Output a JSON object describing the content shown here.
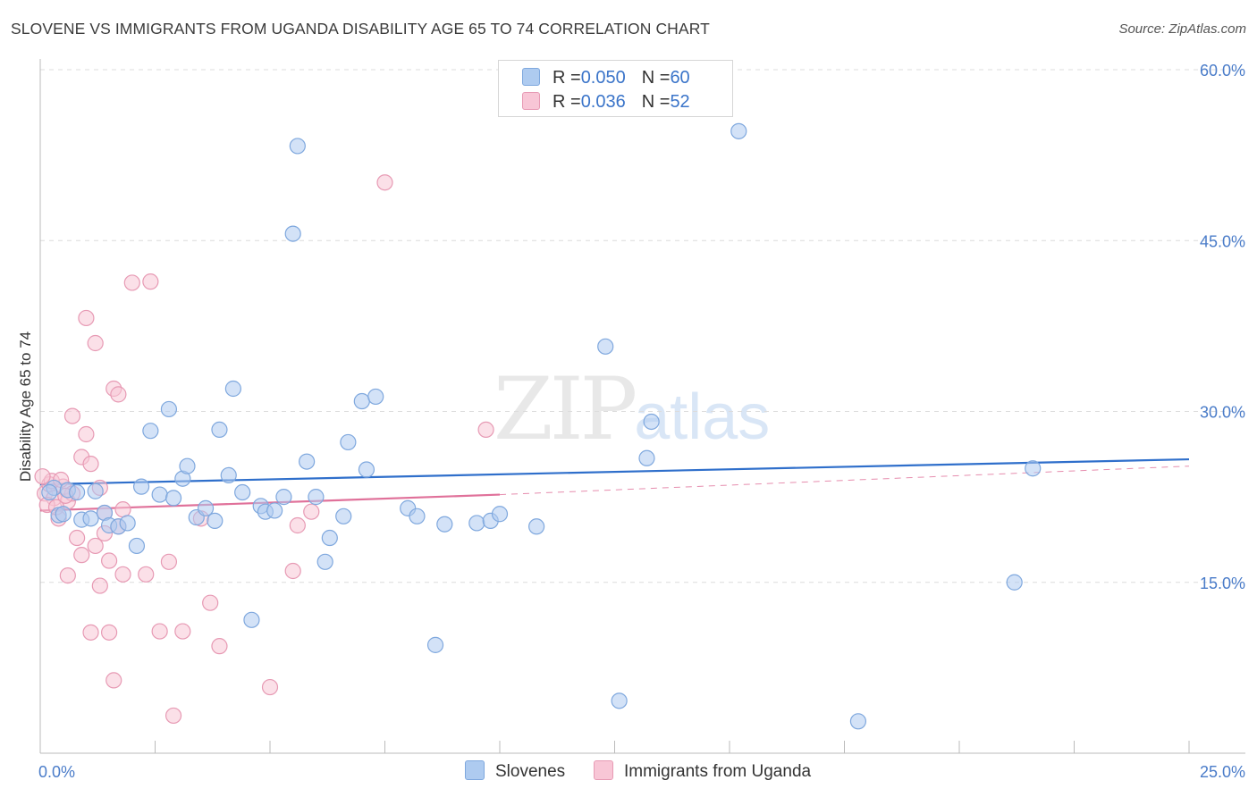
{
  "title": "SLOVENE VS IMMIGRANTS FROM UGANDA DISABILITY AGE 65 TO 74 CORRELATION CHART",
  "source": "Source: ZipAtlas.com",
  "watermark": {
    "zip": "ZIP",
    "atlas": "atlas"
  },
  "legend": {
    "rows": [
      {
        "r_label": "R = ",
        "r_value": "0.050",
        "n_label": "N = ",
        "n_value": "60",
        "color": "#aecbf0",
        "border": "#7fa8de"
      },
      {
        "r_label": "R = ",
        "r_value": "0.036",
        "n_label": "N = ",
        "n_value": "52",
        "color": "#f8c6d6",
        "border": "#e79ab4"
      }
    ]
  },
  "bottom_legend": [
    {
      "label": "Slovenes",
      "color": "#aecbf0",
      "border": "#7fa8de"
    },
    {
      "label": "Immigrants from Uganda",
      "color": "#f8c6d6",
      "border": "#e79ab4"
    }
  ],
  "chart_data": {
    "type": "scatter",
    "title": "SLOVENE VS IMMIGRANTS FROM UGANDA DISABILITY AGE 65 TO 74 CORRELATION CHART",
    "xlabel": "",
    "ylabel": "Disability Age 65 to 74",
    "xlim": [
      0,
      25
    ],
    "ylim": [
      0,
      60
    ],
    "x_tick_labels": [
      "0.0%",
      "25.0%"
    ],
    "y_ticks": [
      15,
      30,
      45,
      60
    ],
    "y_tick_labels": [
      "15.0%",
      "30.0%",
      "45.0%",
      "60.0%"
    ],
    "series": [
      {
        "name": "Slovenes",
        "color": "#7fa8de",
        "fill": "#aecbf0",
        "line_color": "#2f6fcb",
        "trend": {
          "x": [
            0,
            25
          ],
          "y": [
            23.6,
            25.8
          ]
        },
        "points": [
          [
            0.3,
            23.3
          ],
          [
            0.4,
            20.9
          ],
          [
            0.5,
            21.0
          ],
          [
            0.6,
            23.1
          ],
          [
            0.8,
            22.9
          ],
          [
            0.9,
            20.5
          ],
          [
            1.1,
            20.6
          ],
          [
            1.2,
            23.0
          ],
          [
            1.4,
            21.1
          ],
          [
            1.5,
            20.0
          ],
          [
            1.7,
            19.9
          ],
          [
            1.9,
            20.2
          ],
          [
            2.1,
            18.2
          ],
          [
            2.2,
            23.4
          ],
          [
            2.4,
            28.3
          ],
          [
            2.6,
            22.7
          ],
          [
            2.8,
            30.2
          ],
          [
            2.9,
            22.4
          ],
          [
            3.1,
            24.1
          ],
          [
            3.2,
            25.2
          ],
          [
            3.4,
            20.7
          ],
          [
            3.6,
            21.5
          ],
          [
            3.8,
            20.4
          ],
          [
            3.9,
            28.4
          ],
          [
            4.1,
            24.4
          ],
          [
            4.2,
            32.0
          ],
          [
            4.4,
            22.9
          ],
          [
            4.6,
            11.7
          ],
          [
            4.8,
            21.7
          ],
          [
            4.9,
            21.2
          ],
          [
            5.1,
            21.3
          ],
          [
            5.3,
            22.5
          ],
          [
            5.5,
            45.6
          ],
          [
            5.6,
            53.3
          ],
          [
            5.8,
            25.6
          ],
          [
            6.0,
            22.5
          ],
          [
            6.2,
            16.8
          ],
          [
            6.3,
            18.9
          ],
          [
            6.6,
            20.8
          ],
          [
            6.7,
            27.3
          ],
          [
            7.0,
            30.9
          ],
          [
            7.1,
            24.9
          ],
          [
            7.3,
            31.3
          ],
          [
            8.0,
            21.5
          ],
          [
            8.2,
            20.8
          ],
          [
            8.6,
            9.5
          ],
          [
            8.8,
            20.1
          ],
          [
            9.5,
            20.2
          ],
          [
            9.8,
            20.4
          ],
          [
            10.0,
            21.0
          ],
          [
            10.8,
            19.9
          ],
          [
            12.3,
            35.7
          ],
          [
            12.6,
            4.6
          ],
          [
            13.2,
            25.9
          ],
          [
            13.3,
            29.1
          ],
          [
            15.2,
            54.6
          ],
          [
            17.8,
            2.8
          ],
          [
            21.2,
            15.0
          ],
          [
            21.6,
            25.0
          ],
          [
            0.2,
            22.9
          ]
        ]
      },
      {
        "name": "Immigrants from Uganda",
        "color": "#e79ab4",
        "fill": "#f8c6d6",
        "line_color": "#e0719a",
        "trend": {
          "x": [
            0,
            10
          ],
          "y": [
            21.3,
            22.7
          ]
        },
        "trend_dashed": {
          "x": [
            10,
            25
          ],
          "y": [
            22.7,
            25.2
          ]
        },
        "points": [
          [
            0.1,
            22.8
          ],
          [
            0.2,
            23.6
          ],
          [
            0.3,
            22.4
          ],
          [
            0.4,
            20.6
          ],
          [
            0.5,
            23.4
          ],
          [
            0.6,
            15.6
          ],
          [
            0.6,
            22.1
          ],
          [
            0.7,
            29.6
          ],
          [
            0.7,
            22.8
          ],
          [
            0.8,
            18.9
          ],
          [
            0.9,
            17.4
          ],
          [
            0.9,
            26.0
          ],
          [
            1.0,
            28.0
          ],
          [
            1.0,
            38.2
          ],
          [
            1.1,
            25.4
          ],
          [
            1.1,
            10.6
          ],
          [
            1.2,
            18.2
          ],
          [
            1.2,
            36.0
          ],
          [
            1.3,
            23.3
          ],
          [
            1.3,
            14.7
          ],
          [
            1.4,
            21.1
          ],
          [
            1.4,
            19.3
          ],
          [
            1.5,
            10.6
          ],
          [
            1.5,
            16.9
          ],
          [
            1.6,
            32.0
          ],
          [
            1.6,
            6.4
          ],
          [
            1.7,
            19.9
          ],
          [
            1.7,
            31.5
          ],
          [
            1.8,
            21.4
          ],
          [
            1.8,
            15.7
          ],
          [
            2.0,
            41.3
          ],
          [
            2.3,
            15.7
          ],
          [
            2.4,
            41.4
          ],
          [
            2.6,
            10.7
          ],
          [
            2.8,
            16.8
          ],
          [
            2.9,
            3.3
          ],
          [
            3.1,
            10.7
          ],
          [
            3.5,
            20.6
          ],
          [
            3.7,
            13.2
          ],
          [
            3.9,
            9.4
          ],
          [
            5.0,
            5.8
          ],
          [
            5.5,
            16.0
          ],
          [
            5.6,
            20.0
          ],
          [
            5.9,
            21.2
          ],
          [
            7.5,
            50.1
          ],
          [
            9.7,
            28.4
          ],
          [
            0.15,
            21.8
          ],
          [
            0.25,
            23.9
          ],
          [
            0.35,
            21.6
          ],
          [
            0.45,
            24.0
          ],
          [
            0.55,
            22.6
          ],
          [
            0.05,
            24.3
          ]
        ]
      }
    ]
  }
}
